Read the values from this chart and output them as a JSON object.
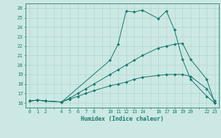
{
  "xlabel": "Humidex (Indice chaleur)",
  "bg_color": "#cce8e4",
  "grid_color": "#aacfcb",
  "line_color": "#1a7a6e",
  "xlim": [
    -0.5,
    23.5
  ],
  "ylim": [
    15.5,
    26.5
  ],
  "xticks": [
    0,
    1,
    2,
    4,
    5,
    6,
    7,
    8,
    10,
    11,
    12,
    13,
    14,
    16,
    17,
    18,
    19,
    20,
    22,
    23
  ],
  "yticks": [
    16,
    17,
    18,
    19,
    20,
    21,
    22,
    23,
    24,
    25,
    26
  ],
  "series": [
    {
      "x": [
        0,
        1,
        2,
        4,
        10,
        11,
        12,
        13,
        14,
        16,
        17,
        18,
        19,
        20,
        22,
        23
      ],
      "y": [
        16.2,
        16.3,
        16.2,
        16.1,
        20.5,
        22.2,
        25.7,
        25.6,
        25.8,
        24.9,
        25.7,
        23.7,
        20.6,
        18.5,
        16.7,
        16.0
      ]
    },
    {
      "x": [
        0,
        1,
        2,
        4,
        5,
        6,
        7,
        8,
        10,
        11,
        12,
        13,
        14,
        16,
        17,
        18,
        19,
        20,
        22,
        23
      ],
      "y": [
        16.2,
        16.3,
        16.2,
        16.1,
        16.5,
        17.0,
        17.5,
        18.0,
        19.0,
        19.5,
        20.0,
        20.5,
        21.0,
        21.8,
        22.0,
        22.2,
        22.3,
        20.6,
        18.5,
        16.0
      ]
    },
    {
      "x": [
        0,
        1,
        2,
        4,
        5,
        6,
        7,
        8,
        10,
        11,
        12,
        13,
        14,
        16,
        17,
        18,
        19,
        20,
        22,
        23
      ],
      "y": [
        16.2,
        16.3,
        16.2,
        16.1,
        16.4,
        16.7,
        17.0,
        17.3,
        17.8,
        18.0,
        18.2,
        18.5,
        18.7,
        18.9,
        19.0,
        19.0,
        19.0,
        18.8,
        17.5,
        16.2
      ]
    }
  ]
}
